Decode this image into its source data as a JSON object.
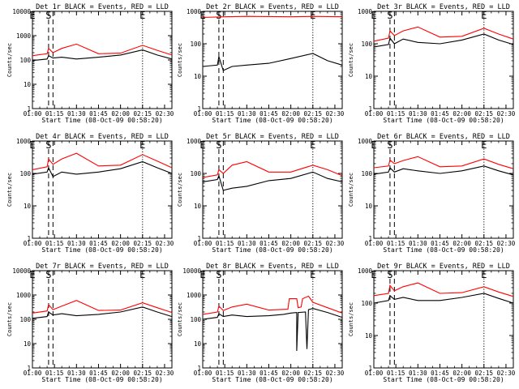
{
  "colors": {
    "events": "#000000",
    "lld": "#ff0000",
    "axes": "#000000",
    "background": "#ffffff"
  },
  "markers": [
    {
      "label": "E",
      "time": "01:00",
      "style": "dotted"
    },
    {
      "label": "S",
      "time": "01:11",
      "style": "dashed"
    },
    {
      "label": "",
      "time": "01:14",
      "style": "dashed"
    },
    {
      "label": "E",
      "time": "02:15",
      "style": "dotted"
    }
  ],
  "chart_data": [
    {
      "type": "line",
      "title": "Det 1r BLACK = Events, RED = LLD",
      "xlabel": "Start Time (08-Oct-09 00:58:20)",
      "ylabel": "Counts/sec",
      "xlim": [
        "01:00",
        "02:35"
      ],
      "ylim": [
        1,
        10000
      ],
      "yscale": "log",
      "xticks": [
        "01:00",
        "01:15",
        "01:30",
        "01:45",
        "02:00",
        "02:15",
        "02:30"
      ],
      "yticks": [
        "1",
        "10",
        "100",
        "1000",
        "10000"
      ],
      "series": [
        {
          "name": "LLD",
          "color": "#ff0000",
          "x": [
            "01:00",
            "01:10",
            "01:11",
            "01:14",
            "01:20",
            "01:30",
            "01:45",
            "02:00",
            "02:15",
            "02:25",
            "02:35"
          ],
          "y": [
            150,
            180,
            300,
            200,
            300,
            450,
            180,
            190,
            400,
            250,
            160
          ]
        },
        {
          "name": "Events",
          "color": "#000000",
          "x": [
            "01:00",
            "01:10",
            "01:11",
            "01:14",
            "01:20",
            "01:30",
            "01:45",
            "02:00",
            "02:15",
            "02:25",
            "02:35"
          ],
          "y": [
            95,
            110,
            150,
            120,
            130,
            110,
            130,
            160,
            260,
            160,
            110
          ]
        }
      ]
    },
    {
      "type": "line",
      "title": "Det 2r BLACK = Events, RED = LLD",
      "xlabel": "Start Time (08-Oct-09 00:58:20)",
      "ylabel": "Counts/sec",
      "xlim": [
        "01:00",
        "02:35"
      ],
      "ylim": [
        1,
        1000
      ],
      "yscale": "log",
      "xticks": [
        "01:00",
        "01:15",
        "01:30",
        "01:45",
        "02:00",
        "02:15",
        "02:30"
      ],
      "yticks": [
        "1",
        "10",
        "100",
        "1000"
      ],
      "series": [
        {
          "name": "LLD",
          "color": "#ff0000",
          "x": [
            "01:00",
            "01:15",
            "01:30",
            "01:45",
            "02:00",
            "02:15",
            "02:35"
          ],
          "y": [
            650,
            680,
            700,
            690,
            680,
            700,
            680
          ]
        },
        {
          "name": "Events",
          "color": "#000000",
          "x": [
            "01:00",
            "01:10",
            "01:11",
            "01:14",
            "01:20",
            "01:30",
            "01:45",
            "02:00",
            "02:15",
            "02:25",
            "02:35"
          ],
          "y": [
            20,
            22,
            40,
            15,
            20,
            22,
            25,
            35,
            50,
            30,
            22
          ]
        }
      ]
    },
    {
      "type": "line",
      "title": "Det 3r BLACK = Events, RED = LLD",
      "xlabel": "Start Time (08-Oct-09 00:58:20)",
      "ylabel": "Counts/sec",
      "xlim": [
        "01:00",
        "02:35"
      ],
      "ylim": [
        1,
        1000
      ],
      "yscale": "log",
      "xticks": [
        "01:00",
        "01:15",
        "01:30",
        "01:45",
        "02:00",
        "02:15",
        "02:30"
      ],
      "yticks": [
        "1",
        "10",
        "100",
        "1000"
      ],
      "series": [
        {
          "name": "LLD",
          "color": "#ff0000",
          "x": [
            "01:00",
            "01:10",
            "01:11",
            "01:14",
            "01:20",
            "01:30",
            "01:45",
            "02:00",
            "02:15",
            "02:25",
            "02:35"
          ],
          "y": [
            120,
            150,
            250,
            180,
            250,
            330,
            160,
            170,
            300,
            200,
            140
          ]
        },
        {
          "name": "Events",
          "color": "#000000",
          "x": [
            "01:00",
            "01:10",
            "01:11",
            "01:14",
            "01:20",
            "01:30",
            "01:45",
            "02:00",
            "02:15",
            "02:25",
            "02:35"
          ],
          "y": [
            80,
            95,
            150,
            100,
            140,
            110,
            100,
            130,
            200,
            130,
            95
          ]
        }
      ]
    },
    {
      "type": "line",
      "title": "Det 4r BLACK = Events, RED = LLD",
      "xlabel": "Start Time (08-Oct-09 00:58:20)",
      "ylabel": "Counts/sec",
      "xlim": [
        "01:00",
        "02:35"
      ],
      "ylim": [
        1,
        1000
      ],
      "yscale": "log",
      "xticks": [
        "01:00",
        "01:15",
        "01:30",
        "01:45",
        "02:00",
        "02:15",
        "02:30"
      ],
      "yticks": [
        "1",
        "10",
        "100",
        "1000"
      ],
      "series": [
        {
          "name": "LLD",
          "color": "#ff0000",
          "x": [
            "01:00",
            "01:10",
            "01:11",
            "01:14",
            "01:20",
            "01:30",
            "01:45",
            "02:00",
            "02:15",
            "02:25",
            "02:35"
          ],
          "y": [
            130,
            160,
            280,
            190,
            280,
            420,
            170,
            180,
            380,
            240,
            150
          ]
        },
        {
          "name": "Events",
          "color": "#000000",
          "x": [
            "01:00",
            "01:10",
            "01:11",
            "01:14",
            "01:20",
            "01:30",
            "01:45",
            "02:00",
            "02:15",
            "02:25",
            "02:35"
          ],
          "y": [
            95,
            110,
            150,
            80,
            110,
            95,
            110,
            140,
            230,
            150,
            100
          ]
        }
      ]
    },
    {
      "type": "line",
      "title": "Det 5r BLACK = Events, RED = LLD",
      "xlabel": "Start Time (08-Oct-09 00:58:20)",
      "ylabel": "Counts/sec",
      "xlim": [
        "01:00",
        "02:35"
      ],
      "ylim": [
        1,
        1000
      ],
      "yscale": "log",
      "xticks": [
        "01:00",
        "01:15",
        "01:30",
        "01:45",
        "02:00",
        "02:15",
        "02:30"
      ],
      "yticks": [
        "1",
        "10",
        "100",
        "1000"
      ],
      "series": [
        {
          "name": "LLD",
          "color": "#ff0000",
          "x": [
            "01:00",
            "01:10",
            "01:11",
            "01:14",
            "01:20",
            "01:30",
            "01:45",
            "02:00",
            "02:15",
            "02:25",
            "02:35"
          ],
          "y": [
            75,
            90,
            130,
            100,
            180,
            230,
            110,
            110,
            180,
            130,
            85
          ]
        },
        {
          "name": "Events",
          "color": "#000000",
          "x": [
            "01:00",
            "01:10",
            "01:11",
            "01:14",
            "01:20",
            "01:30",
            "01:45",
            "02:00",
            "02:15",
            "02:25",
            "02:35"
          ],
          "y": [
            55,
            65,
            85,
            30,
            35,
            40,
            60,
            70,
            110,
            70,
            55
          ]
        }
      ]
    },
    {
      "type": "line",
      "title": "Det 6r BLACK = Events, RED = LLD",
      "xlabel": "Start Time (08-Oct-09 00:58:20)",
      "ylabel": "Counts/sec",
      "xlim": [
        "01:00",
        "02:35"
      ],
      "ylim": [
        1,
        1000
      ],
      "yscale": "log",
      "xticks": [
        "01:00",
        "01:15",
        "01:30",
        "01:45",
        "02:00",
        "02:15",
        "02:30"
      ],
      "yticks": [
        "1",
        "10",
        "100",
        "1000"
      ],
      "series": [
        {
          "name": "LLD",
          "color": "#ff0000",
          "x": [
            "01:00",
            "01:10",
            "01:11",
            "01:14",
            "01:20",
            "01:30",
            "01:45",
            "02:00",
            "02:15",
            "02:25",
            "02:35"
          ],
          "y": [
            150,
            170,
            260,
            200,
            250,
            330,
            160,
            170,
            280,
            190,
            140
          ]
        },
        {
          "name": "Events",
          "color": "#000000",
          "x": [
            "01:00",
            "01:10",
            "01:11",
            "01:14",
            "01:20",
            "01:30",
            "01:45",
            "02:00",
            "02:15",
            "02:25",
            "02:35"
          ],
          "y": [
            95,
            110,
            150,
            110,
            140,
            120,
            100,
            120,
            170,
            120,
            90
          ]
        }
      ]
    },
    {
      "type": "line",
      "title": "Det 7r BLACK = Events, RED = LLD",
      "xlabel": "Start Time (08-Oct-09 00:58:20)",
      "ylabel": "Counts/sec",
      "xlim": [
        "01:00",
        "02:35"
      ],
      "ylim": [
        1,
        10000
      ],
      "yscale": "log",
      "xticks": [
        "01:00",
        "01:15",
        "01:30",
        "01:45",
        "02:00",
        "02:15",
        "02:30"
      ],
      "yticks": [
        "1",
        "10",
        "100",
        "1000",
        "10000"
      ],
      "series": [
        {
          "name": "LLD",
          "color": "#ff0000",
          "x": [
            "01:00",
            "01:10",
            "01:11",
            "01:14",
            "01:20",
            "01:30",
            "01:45",
            "02:00",
            "02:15",
            "02:25",
            "02:35"
          ],
          "y": [
            180,
            220,
            400,
            250,
            350,
            600,
            230,
            240,
            480,
            300,
            190
          ]
        },
        {
          "name": "Events",
          "color": "#000000",
          "x": [
            "01:00",
            "01:10",
            "01:11",
            "01:14",
            "01:20",
            "01:30",
            "01:45",
            "02:00",
            "02:15",
            "02:25",
            "02:35"
          ],
          "y": [
            110,
            130,
            200,
            150,
            170,
            140,
            160,
            200,
            320,
            200,
            130
          ]
        }
      ]
    },
    {
      "type": "line",
      "title": "Det 8r BLACK = Events, RED = LLD",
      "xlabel": "Start Time (08-Oct-09 00:58:20)",
      "ylabel": "Counts/sec",
      "xlim": [
        "01:00",
        "02:35"
      ],
      "ylim": [
        1,
        10000
      ],
      "yscale": "log",
      "xticks": [
        "01:00",
        "01:15",
        "01:30",
        "01:45",
        "02:00",
        "02:15",
        "02:30"
      ],
      "yticks": [
        "1",
        "10",
        "100",
        "1000",
        "10000"
      ],
      "series": [
        {
          "name": "LLD",
          "color": "#ff0000",
          "x": [
            "01:00",
            "01:10",
            "01:11",
            "01:14",
            "01:20",
            "01:30",
            "01:45",
            "01:58",
            "01:59",
            "02:04",
            "02:05",
            "02:07",
            "02:08",
            "02:12",
            "02:15",
            "02:25",
            "02:35"
          ],
          "y": [
            160,
            200,
            350,
            230,
            320,
            420,
            240,
            260,
            700,
            700,
            300,
            320,
            700,
            900,
            500,
            300,
            180
          ]
        },
        {
          "name": "Events",
          "color": "#000000",
          "x": [
            "01:00",
            "01:10",
            "01:11",
            "01:14",
            "01:20",
            "01:30",
            "01:45",
            "01:55",
            "02:00",
            "02:04",
            "02:04",
            "02:05",
            "02:10",
            "02:11",
            "02:12",
            "02:15",
            "02:25",
            "02:35"
          ],
          "y": [
            100,
            120,
            170,
            130,
            150,
            130,
            140,
            160,
            180,
            190,
            5,
            190,
            200,
            6,
            250,
            280,
            190,
            120
          ]
        }
      ]
    },
    {
      "type": "line",
      "title": "Det 9r BLACK = Events, RED = LLD",
      "xlabel": "Start Time (08-Oct-09 00:58:20)",
      "ylabel": "Counts/sec",
      "xlim": [
        "01:00",
        "02:35"
      ],
      "ylim": [
        1,
        1000
      ],
      "yscale": "log",
      "xticks": [
        "01:00",
        "01:15",
        "01:30",
        "01:45",
        "02:00",
        "02:15",
        "02:30"
      ],
      "yticks": [
        "1",
        "10",
        "100",
        "1000"
      ],
      "series": [
        {
          "name": "LLD",
          "color": "#ff0000",
          "x": [
            "01:00",
            "01:10",
            "01:11",
            "01:14",
            "01:20",
            "01:30",
            "01:45",
            "02:00",
            "02:15",
            "02:25",
            "02:35"
          ],
          "y": [
            170,
            200,
            350,
            240,
            320,
            420,
            200,
            210,
            320,
            220,
            160
          ]
        },
        {
          "name": "Events",
          "color": "#000000",
          "x": [
            "01:00",
            "01:10",
            "01:11",
            "01:14",
            "01:20",
            "01:30",
            "01:45",
            "02:00",
            "02:15",
            "02:25",
            "02:35"
          ],
          "y": [
            100,
            120,
            170,
            130,
            150,
            120,
            120,
            150,
            200,
            140,
            100
          ]
        }
      ]
    }
  ]
}
